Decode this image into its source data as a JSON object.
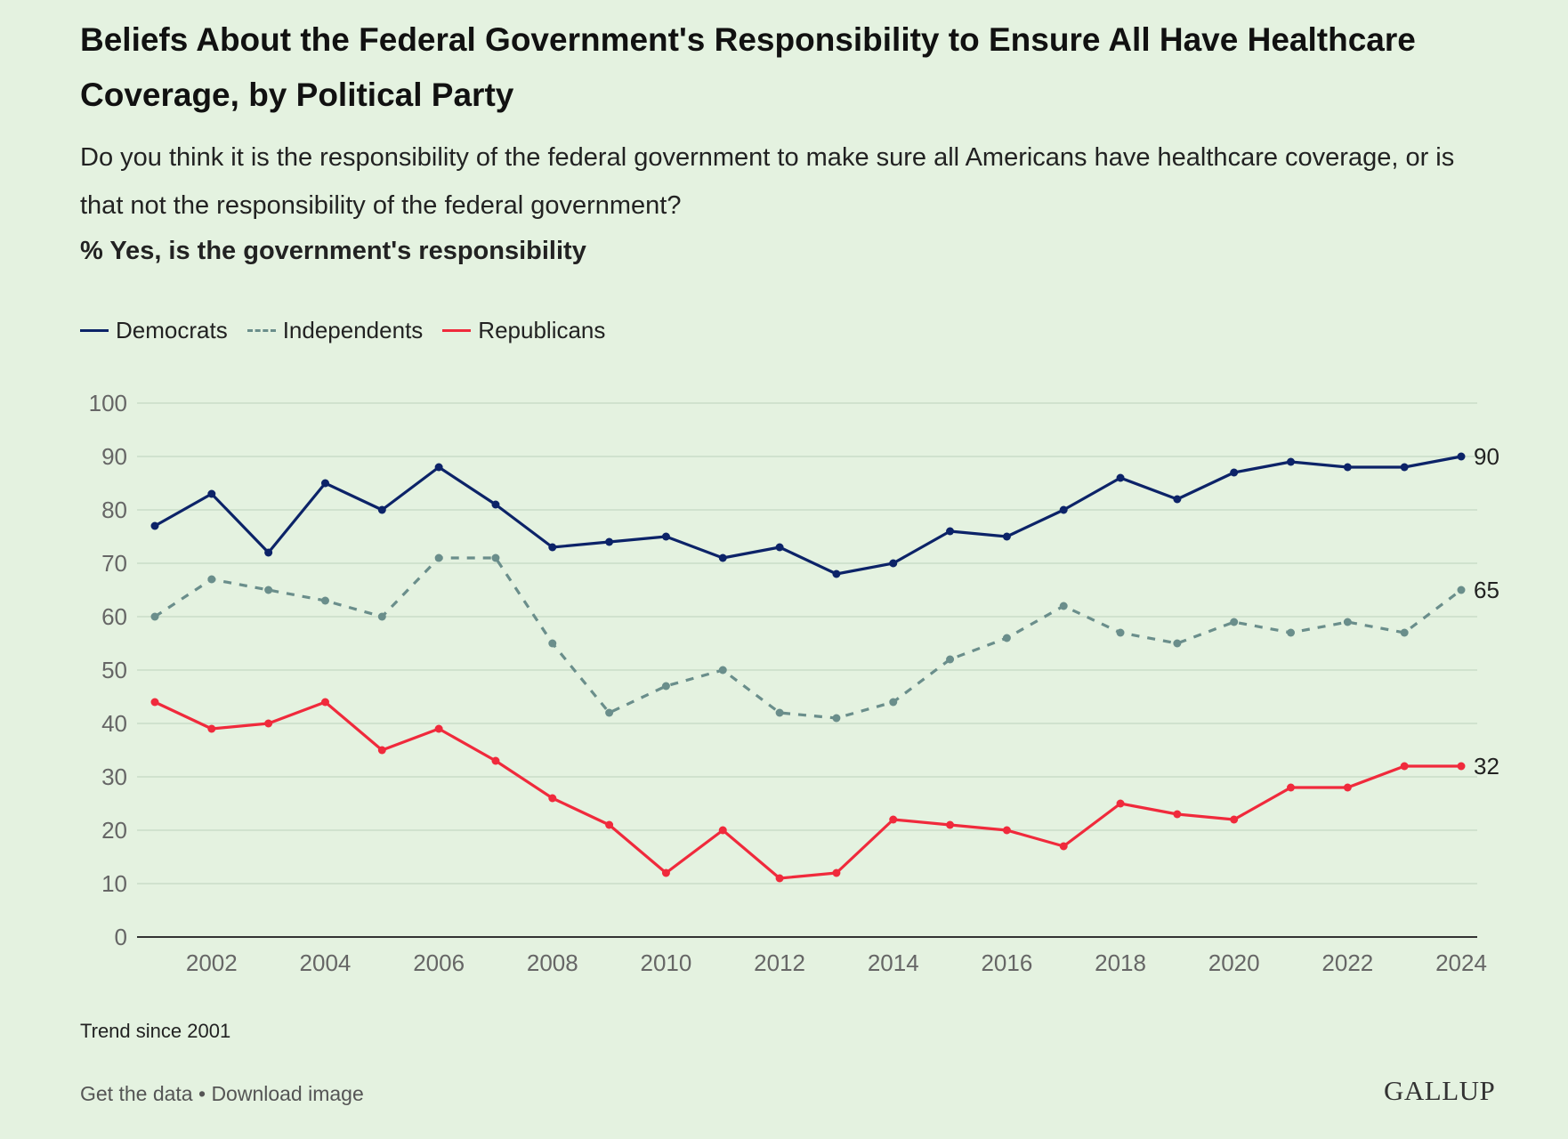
{
  "chart_data": {
    "type": "line",
    "title": "Beliefs About the Federal Government's Responsibility to Ensure All Have Healthcare Coverage, by Political Party",
    "subtitle": "Do you think it is the responsibility of the federal government to make sure all Americans have healthcare coverage, or is that not the responsibility of the federal government?",
    "measure": "% Yes, is the government's responsibility",
    "xlabel": "",
    "ylabel": "",
    "ylim": [
      0,
      100
    ],
    "yticks": [
      "0",
      "10",
      "20",
      "30",
      "40",
      "50",
      "60",
      "70",
      "80",
      "90",
      "100"
    ],
    "xticks": [
      "2002",
      "2004",
      "2006",
      "2008",
      "2010",
      "2012",
      "2014",
      "2016",
      "2018",
      "2020",
      "2022",
      "2024"
    ],
    "x": [
      2001,
      2002,
      2003,
      2004,
      2005,
      2006,
      2007,
      2008,
      2009,
      2010,
      2011,
      2012,
      2013,
      2014,
      2015,
      2016,
      2017,
      2018,
      2019,
      2020,
      2021,
      2022,
      2023,
      2024
    ],
    "legend_position": "top-left",
    "grid": true,
    "series": [
      {
        "name": "Democrats",
        "color": "#0c2368",
        "dashed": false,
        "end_label": "90",
        "values": [
          77,
          83,
          72,
          85,
          80,
          88,
          81,
          73,
          74,
          75,
          71,
          73,
          68,
          70,
          76,
          75,
          80,
          86,
          82,
          87,
          89,
          88,
          88,
          90
        ]
      },
      {
        "name": "Independents",
        "color": "#6a8e8b",
        "dashed": true,
        "end_label": "65",
        "values": [
          60,
          67,
          65,
          63,
          60,
          71,
          71,
          55,
          42,
          47,
          50,
          42,
          41,
          44,
          52,
          56,
          62,
          57,
          55,
          59,
          57,
          59,
          57,
          65
        ]
      },
      {
        "name": "Republicans",
        "color": "#f02a3c",
        "dashed": false,
        "end_label": "32",
        "values": [
          44,
          39,
          40,
          44,
          35,
          39,
          33,
          26,
          21,
          12,
          20,
          11,
          12,
          22,
          21,
          20,
          17,
          25,
          23,
          22,
          28,
          28,
          32,
          32
        ]
      }
    ]
  },
  "note": "Trend since 2001",
  "footer": {
    "get_data": "Get the data",
    "separator": " • ",
    "download": "Download image"
  },
  "logo": "GALLUP"
}
